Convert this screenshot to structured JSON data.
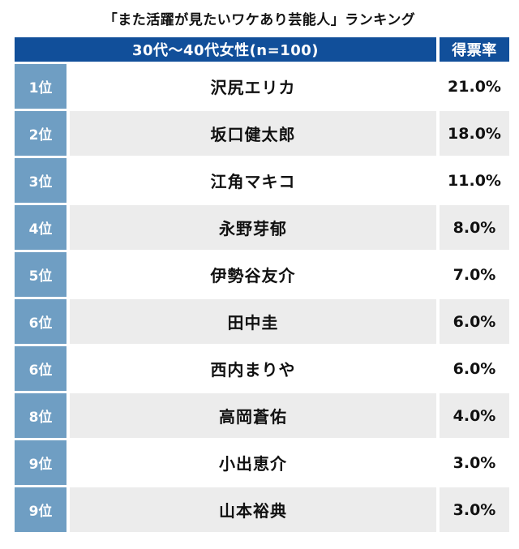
{
  "title": "「また活躍が見たいワケあり芸能人」ランキング",
  "header": {
    "group": "30代〜40代女性(n=100)",
    "value": "得票率"
  },
  "rows": [
    {
      "rank": "1位",
      "name": "沢尻エリカ",
      "pct": "21.0%"
    },
    {
      "rank": "2位",
      "name": "坂口健太郎",
      "pct": "18.0%"
    },
    {
      "rank": "3位",
      "name": "江角マキコ",
      "pct": "11.0%"
    },
    {
      "rank": "4位",
      "name": "永野芽郁",
      "pct": "8.0%"
    },
    {
      "rank": "5位",
      "name": "伊勢谷友介",
      "pct": "7.0%"
    },
    {
      "rank": "6位",
      "name": "田中圭",
      "pct": "6.0%"
    },
    {
      "rank": "6位",
      "name": "西内まりや",
      "pct": "6.0%"
    },
    {
      "rank": "8位",
      "name": "高岡蒼佑",
      "pct": "4.0%"
    },
    {
      "rank": "9位",
      "name": "小出恵介",
      "pct": "3.0%"
    },
    {
      "rank": "9位",
      "name": "山本裕典",
      "pct": "3.0%"
    }
  ],
  "colors": {
    "header_bg": "#114f9a",
    "rank_bg": "#6f9ec3",
    "row_alt_bg": "#ececec",
    "header_text": "#ffffff",
    "body_text": "#111111"
  },
  "chart_data": {
    "type": "table",
    "title": "「また活躍が見たいワケあり芸能人」ランキング",
    "group_label": "30代〜40代女性(n=100)",
    "value_label": "得票率",
    "sample_size": 100,
    "ranks": [
      "1位",
      "2位",
      "3位",
      "4位",
      "5位",
      "6位",
      "6位",
      "8位",
      "9位",
      "9位"
    ],
    "names": [
      "沢尻エリカ",
      "坂口健太郎",
      "江角マキコ",
      "永野芽郁",
      "伊勢谷友介",
      "田中圭",
      "西内まりや",
      "高岡蒼佑",
      "小出恵介",
      "山本裕典"
    ],
    "values_pct": [
      21.0,
      18.0,
      11.0,
      8.0,
      7.0,
      6.0,
      6.0,
      4.0,
      3.0,
      3.0
    ]
  }
}
